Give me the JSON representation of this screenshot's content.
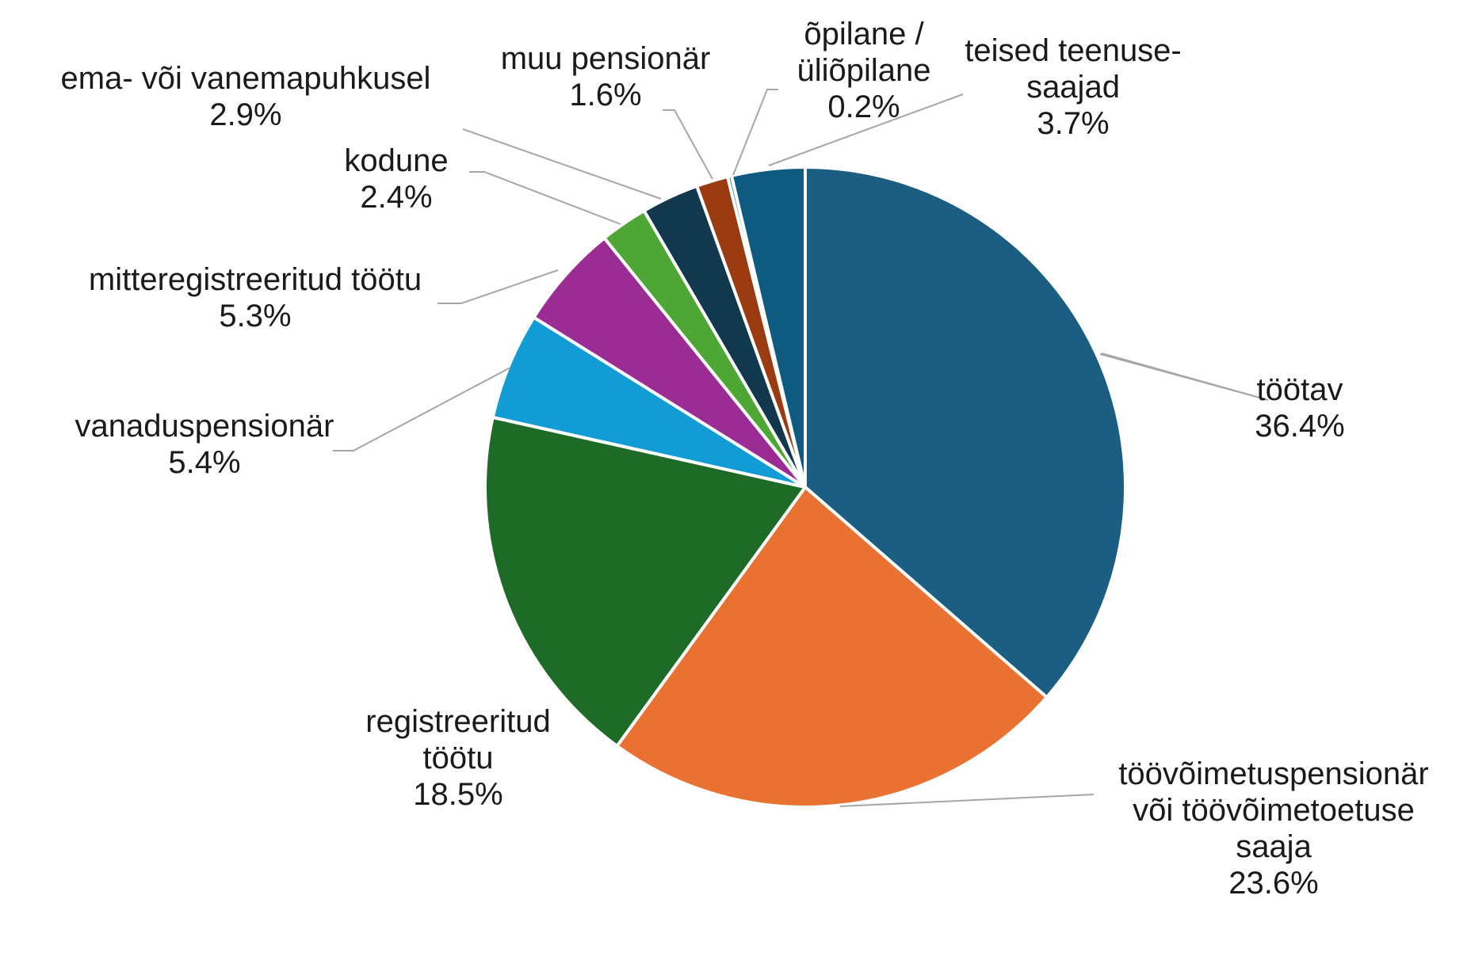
{
  "chart_data": {
    "type": "pie",
    "title": "",
    "slices": [
      {
        "label_lines": [
          "töötav"
        ],
        "value": 36.4,
        "value_label": "36.4%",
        "color": "#1b5e82"
      },
      {
        "label_lines": [
          "töövõimetuspensionär",
          "või töövõimetoetuse",
          "saaja"
        ],
        "value": 23.6,
        "value_label": "23.6%",
        "color": "#e97232"
      },
      {
        "label_lines": [
          "registreeritud",
          "töötu"
        ],
        "value": 18.5,
        "value_label": "18.5%",
        "color": "#1d6b26"
      },
      {
        "label_lines": [
          "vanaduspensionär"
        ],
        "value": 5.4,
        "value_label": "5.4%",
        "color": "#129cd6"
      },
      {
        "label_lines": [
          "mitteregistreeritud töötu"
        ],
        "value": 5.3,
        "value_label": "5.3%",
        "color": "#9b2c94"
      },
      {
        "label_lines": [
          "kodune"
        ],
        "value": 2.4,
        "value_label": "2.4%",
        "color": "#4ea634"
      },
      {
        "label_lines": [
          "ema- või vanemapuhkusel"
        ],
        "value": 2.9,
        "value_label": "2.9%",
        "color": "#12384e"
      },
      {
        "label_lines": [
          "muu pensionär"
        ],
        "value": 1.6,
        "value_label": "1.6%",
        "color": "#9a3b12"
      },
      {
        "label_lines": [
          "õpilane /",
          "üliõpilane"
        ],
        "value": 0.2,
        "value_label": "0.2%",
        "color": "#2a7a9c"
      },
      {
        "label_lines": [
          "teised teenuse-",
          "saajad"
        ],
        "value": 3.7,
        "value_label": "3.7%",
        "color": "#0e5a80"
      }
    ]
  }
}
